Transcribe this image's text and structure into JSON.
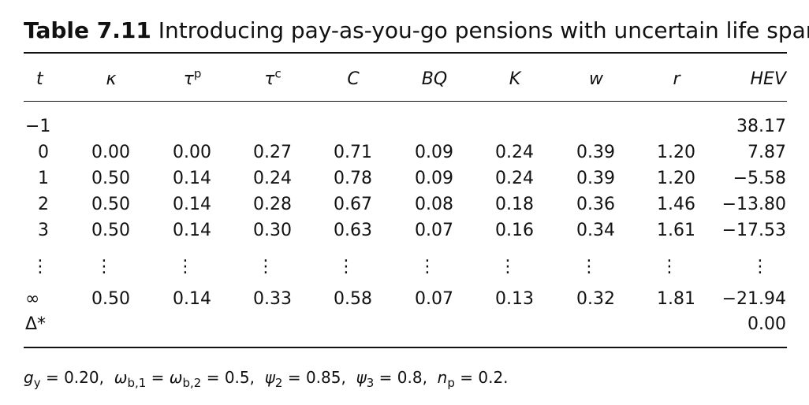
{
  "title": {
    "label": "Table 7.11",
    "text": "Introducing pay-as-you-go pensions with uncertain life span"
  },
  "table": {
    "columns": [
      {
        "text": "t"
      },
      {
        "text": "κ"
      },
      {
        "text": "τ",
        "sup": "p"
      },
      {
        "text": "τ",
        "sup": "c"
      },
      {
        "text": "C"
      },
      {
        "text": "BQ"
      },
      {
        "text": "K"
      },
      {
        "text": "w"
      },
      {
        "text": "r"
      },
      {
        "text": "HEV"
      }
    ],
    "rows": [
      [
        "−1",
        null,
        null,
        null,
        null,
        null,
        null,
        null,
        null,
        "38.17"
      ],
      [
        "0",
        "0.00",
        "0.00",
        "0.27",
        "0.71",
        "0.09",
        "0.24",
        "0.39",
        "1.20",
        "7.87"
      ],
      [
        "1",
        "0.50",
        "0.14",
        "0.24",
        "0.78",
        "0.09",
        "0.24",
        "0.39",
        "1.20",
        "−5.58"
      ],
      [
        "2",
        "0.50",
        "0.14",
        "0.28",
        "0.67",
        "0.08",
        "0.18",
        "0.36",
        "1.46",
        "−13.80"
      ],
      [
        "3",
        "0.50",
        "0.14",
        "0.30",
        "0.63",
        "0.07",
        "0.16",
        "0.34",
        "1.61",
        "−17.53"
      ],
      [
        "⋮",
        "⋮",
        "⋮",
        "⋮",
        "⋮",
        "⋮",
        "⋮",
        "⋮",
        "⋮",
        "⋮"
      ],
      [
        "∞",
        "0.50",
        "0.14",
        "0.33",
        "0.58",
        "0.07",
        "0.13",
        "0.32",
        "1.81",
        "−21.94"
      ],
      [
        "Δ*",
        null,
        null,
        null,
        null,
        null,
        null,
        null,
        null,
        "0.00"
      ]
    ]
  },
  "note": [
    {
      "sym": "g",
      "sub": "y",
      "text": " = 0.20,"
    },
    {
      "sym": "ω",
      "sub": "b,1",
      "text": " ="
    },
    {
      "sym": "ω",
      "sub": "b,2",
      "text": " = 0.5,"
    },
    {
      "sym": "ψ",
      "sub": "2",
      "text": " = 0.85,"
    },
    {
      "sym": "ψ",
      "sub": "3",
      "text": " = 0.8,"
    },
    {
      "sym": "n",
      "sub": "p",
      "text": " = 0.2."
    }
  ]
}
